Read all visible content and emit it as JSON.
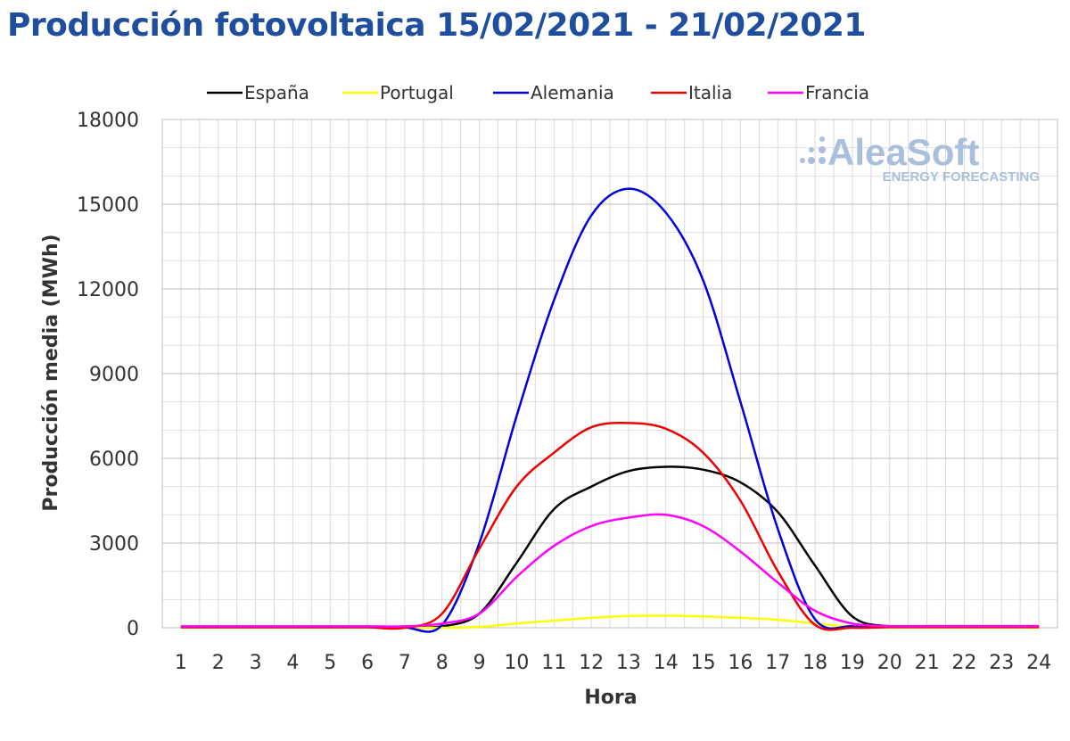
{
  "chart_data": {
    "type": "line",
    "title": "Producción fotovoltaica 15/02/2021 - 21/02/2021",
    "xlabel": "Hora",
    "ylabel": "Producción media (MWh)",
    "x": [
      1,
      2,
      3,
      4,
      5,
      6,
      7,
      8,
      9,
      10,
      11,
      12,
      13,
      14,
      15,
      16,
      17,
      18,
      19,
      20,
      21,
      22,
      23,
      24
    ],
    "ylim": [
      0,
      18000
    ],
    "yticks": [
      "0",
      "3000",
      "6000",
      "9000",
      "12000",
      "15000",
      "18000"
    ],
    "grid": true,
    "legend_position": "top",
    "series": [
      {
        "name": "España",
        "color": "#000000",
        "values": [
          20,
          20,
          20,
          20,
          20,
          20,
          10,
          50,
          500,
          2300,
          4200,
          5000,
          5550,
          5700,
          5600,
          5150,
          4100,
          2200,
          400,
          50,
          30,
          30,
          30,
          30
        ]
      },
      {
        "name": "Portugal",
        "color": "#ffff00",
        "values": [
          10,
          10,
          10,
          10,
          10,
          10,
          0,
          0,
          30,
          150,
          250,
          350,
          420,
          430,
          400,
          350,
          280,
          150,
          30,
          10,
          10,
          10,
          10,
          10
        ]
      },
      {
        "name": "Alemania",
        "color": "#0000dd",
        "values": [
          20,
          20,
          20,
          20,
          20,
          20,
          10,
          100,
          3000,
          7500,
          11600,
          14600,
          15550,
          14700,
          12300,
          8000,
          3500,
          300,
          50,
          30,
          30,
          30,
          30,
          30
        ]
      },
      {
        "name": "Italia",
        "color": "#ee0000",
        "values": [
          20,
          20,
          20,
          20,
          20,
          20,
          0,
          500,
          2800,
          5000,
          6200,
          7100,
          7250,
          7050,
          6200,
          4500,
          2000,
          100,
          0,
          20,
          20,
          20,
          20,
          20
        ]
      },
      {
        "name": "Francia",
        "color": "#ff00ff",
        "values": [
          50,
          50,
          50,
          50,
          50,
          50,
          50,
          150,
          500,
          1800,
          2900,
          3600,
          3900,
          4000,
          3600,
          2700,
          1600,
          600,
          150,
          60,
          60,
          60,
          60,
          60
        ]
      }
    ]
  },
  "logo": {
    "main": "AleaSoft",
    "sub": "ENERGY FORECASTING"
  }
}
